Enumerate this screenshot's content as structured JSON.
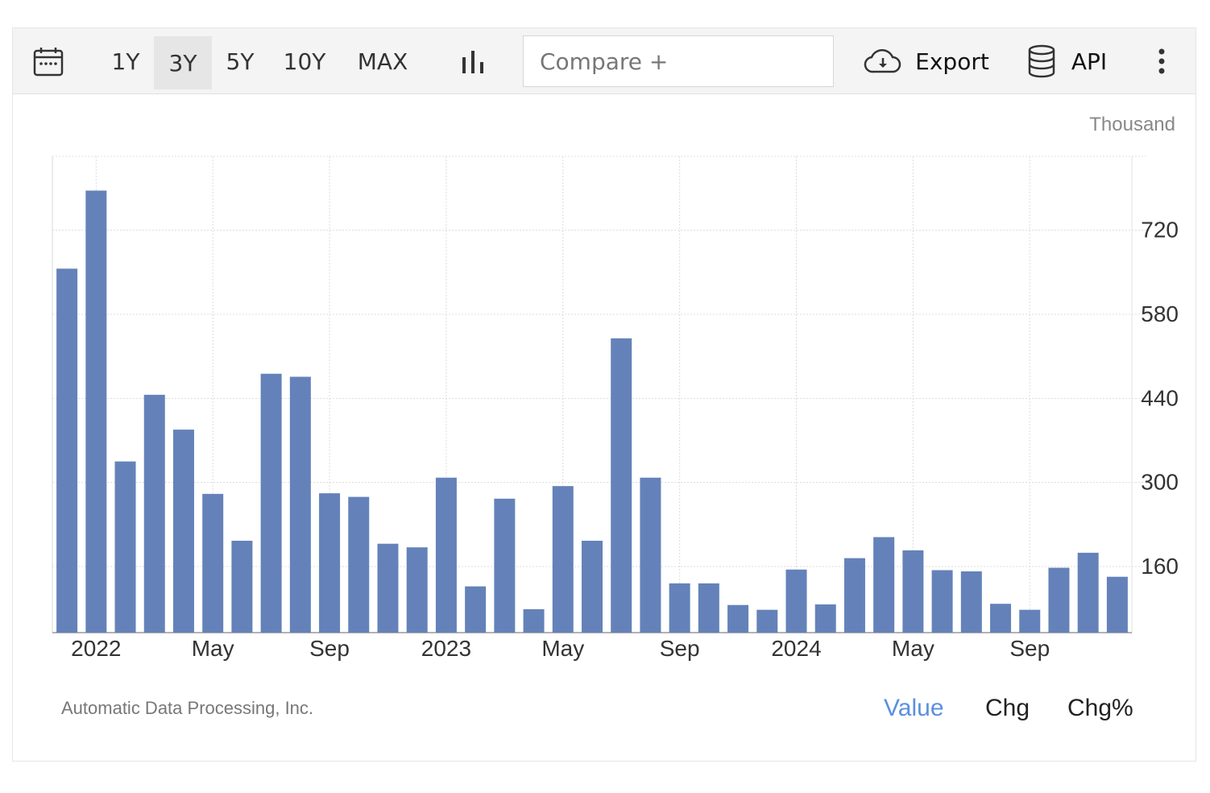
{
  "toolbar": {
    "ranges": [
      "1Y",
      "3Y",
      "5Y",
      "10Y",
      "MAX"
    ],
    "active_range": "3Y",
    "compare_placeholder": "Compare +",
    "export_label": "Export",
    "api_label": "API",
    "icons": [
      "calendar-icon",
      "bar-chart-icon",
      "cloud-download-icon",
      "database-icon",
      "more-vertical-icon"
    ]
  },
  "chart_data": {
    "type": "bar",
    "unit_label": "Thousand",
    "bar_color": "#6482b9",
    "ylim": [
      50,
      843
    ],
    "yticks": [
      160,
      300,
      440,
      580,
      720
    ],
    "x_tick_labels": [
      {
        "label": "2022",
        "index": 1
      },
      {
        "label": "May",
        "index": 5
      },
      {
        "label": "Sep",
        "index": 9
      },
      {
        "label": "2023",
        "index": 13
      },
      {
        "label": "May",
        "index": 17
      },
      {
        "label": "Sep",
        "index": 21
      },
      {
        "label": "2024",
        "index": 25
      },
      {
        "label": "May",
        "index": 29
      },
      {
        "label": "Sep",
        "index": 33
      }
    ],
    "grid": true,
    "values": [
      656,
      786,
      335,
      446,
      388,
      281,
      203,
      481,
      476,
      282,
      276,
      198,
      192,
      308,
      127,
      273,
      89,
      294,
      203,
      540,
      308,
      132,
      132,
      96,
      88,
      155,
      97,
      174,
      209,
      187,
      154,
      152,
      98,
      88,
      158,
      183,
      143
    ]
  },
  "footer": {
    "source": "Automatic Data Processing, Inc.",
    "modes": [
      "Value",
      "Chg",
      "Chg%"
    ],
    "active_mode": "Value"
  }
}
